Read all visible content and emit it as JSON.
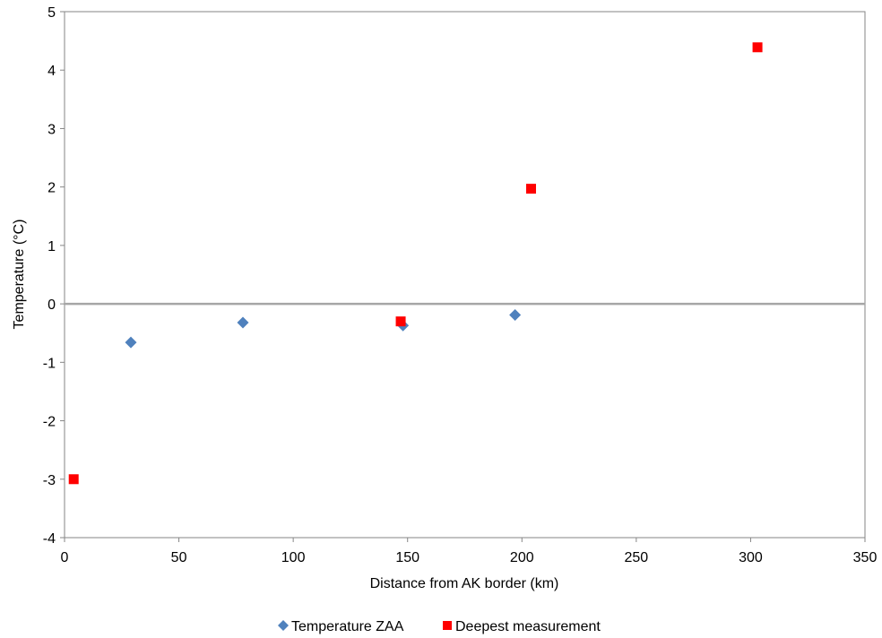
{
  "chart_data": {
    "type": "scatter",
    "title": "",
    "xlabel": "Distance from AK border (km)",
    "ylabel": "Temperature (°C)",
    "xlim": [
      0,
      350
    ],
    "ylim": [
      -4,
      5
    ],
    "xticks": [
      0,
      50,
      100,
      150,
      200,
      250,
      300,
      350
    ],
    "yticks": [
      -4,
      -3,
      -2,
      -1,
      0,
      1,
      2,
      3,
      4,
      5
    ],
    "grid": false,
    "zero_line": true,
    "legend_position": "bottom",
    "series": [
      {
        "name": "Temperature ZAA",
        "marker": "diamond",
        "color": "#4F81BD",
        "points": [
          {
            "x": 29,
            "y": -0.66
          },
          {
            "x": 78,
            "y": -0.32
          },
          {
            "x": 148,
            "y": -0.37
          },
          {
            "x": 197,
            "y": -0.19
          }
        ]
      },
      {
        "name": "Deepest measurement",
        "marker": "square",
        "color": "#FF0000",
        "points": [
          {
            "x": 4,
            "y": -3.0
          },
          {
            "x": 147,
            "y": -0.3
          },
          {
            "x": 204,
            "y": 1.97
          },
          {
            "x": 303,
            "y": 4.39
          }
        ]
      }
    ]
  }
}
